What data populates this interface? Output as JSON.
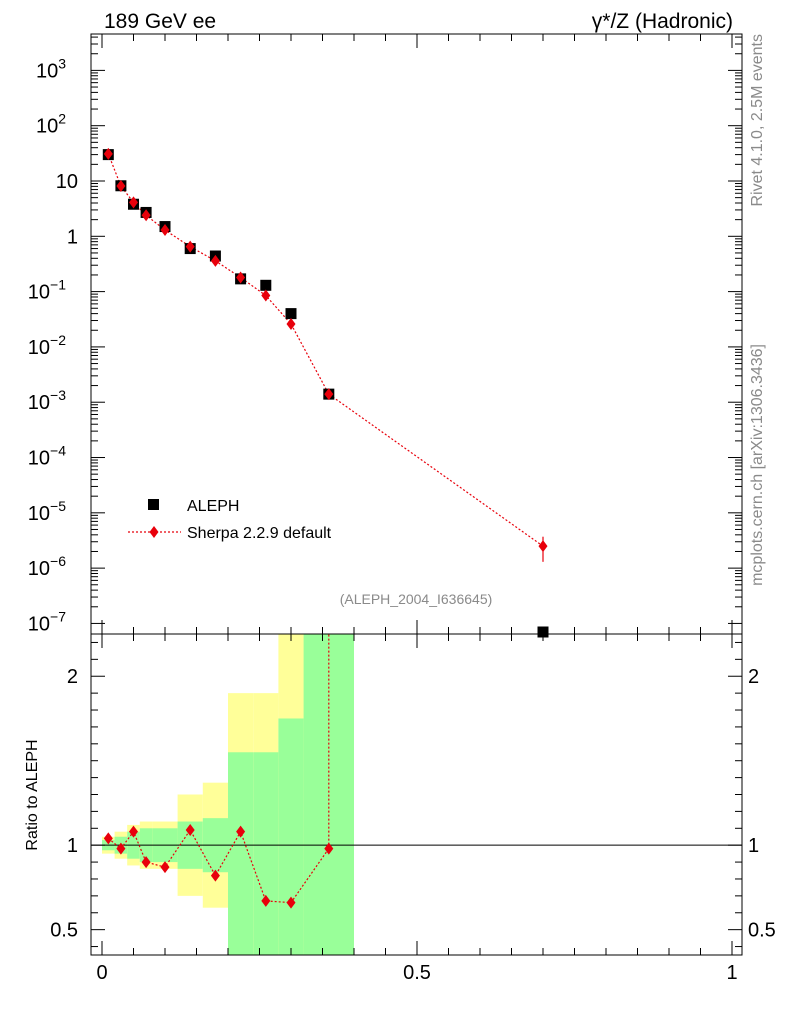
{
  "chart_data": {
    "type": "scatter",
    "title_left": "189 GeV ee",
    "title_right": "γ*/Z (Hadronic)",
    "side_label_top": "Rivet 4.1.0,  2.5M events",
    "side_label_bottom": "mcplots.cern.ch [arXiv:1306.3436]",
    "analysis_tag": "(ALEPH_2004_I636645)",
    "xlim": [
      0,
      1
    ],
    "ylim": [
      1e-07,
      5000
    ],
    "x_ticks": [
      {
        "value": 0,
        "label": "0"
      },
      {
        "value": 0.5,
        "label": "0.5"
      },
      {
        "value": 1,
        "label": "1"
      }
    ],
    "y_ticks": [
      {
        "value": 1000.0,
        "base": "10",
        "exp": "3"
      },
      {
        "value": 100.0,
        "base": "10",
        "exp": "2"
      },
      {
        "value": 10,
        "base": "10",
        "exp": ""
      },
      {
        "value": 1,
        "base": "1",
        "exp": ""
      },
      {
        "value": 0.1,
        "base": "10",
        "exp": "−1"
      },
      {
        "value": 0.01,
        "base": "10",
        "exp": "−2"
      },
      {
        "value": 0.001,
        "base": "10",
        "exp": "−3"
      },
      {
        "value": 0.0001,
        "base": "10",
        "exp": "−4"
      },
      {
        "value": 1e-05,
        "base": "10",
        "exp": "−5"
      },
      {
        "value": 1e-06,
        "base": "10",
        "exp": "−6"
      },
      {
        "value": 1e-07,
        "base": "10",
        "exp": "−7"
      }
    ],
    "legend": [
      {
        "name": "ALEPH",
        "marker": "square",
        "color": "#000000"
      },
      {
        "name": "Sherpa 2.2.9 default",
        "marker": "diamond",
        "color": "#e8000b"
      }
    ],
    "legend_position": "lower-left",
    "series": [
      {
        "name": "ALEPH",
        "x": [
          0.01,
          0.03,
          0.05,
          0.07,
          0.1,
          0.14,
          0.18,
          0.22,
          0.26,
          0.3,
          0.36,
          0.7
        ],
        "y": [
          30,
          8.2,
          3.8,
          2.7,
          1.5,
          0.6,
          0.44,
          0.17,
          0.13,
          0.04,
          0.0014,
          7e-08
        ]
      },
      {
        "name": "Sherpa 2.2.9 default",
        "x": [
          0.01,
          0.03,
          0.05,
          0.07,
          0.1,
          0.14,
          0.18,
          0.22,
          0.26,
          0.3,
          0.36,
          0.7
        ],
        "y": [
          31,
          8.1,
          4.1,
          2.4,
          1.3,
          0.65,
          0.36,
          0.18,
          0.085,
          0.026,
          0.0014,
          2.5e-06
        ],
        "yerr": [
          0,
          0,
          0,
          0,
          0,
          0,
          0,
          0,
          0,
          0,
          0,
          1.2e-06
        ]
      }
    ],
    "ratio": {
      "ylabel": "Ratio to ALEPH",
      "ylim": [
        0.35,
        2.25
      ],
      "y_ticks": [
        {
          "value": 0.5,
          "label": "0.5"
        },
        {
          "value": 1,
          "label": "1"
        },
        {
          "value": 2,
          "label": "2"
        }
      ],
      "bands": [
        {
          "xlo": 0.0,
          "xhi": 0.02,
          "in_lo": 0.97,
          "in_hi": 1.03,
          "out_lo": 0.95,
          "out_hi": 1.05
        },
        {
          "xlo": 0.02,
          "xhi": 0.04,
          "in_lo": 0.95,
          "in_hi": 1.05,
          "out_lo": 0.92,
          "out_hi": 1.08
        },
        {
          "xlo": 0.04,
          "xhi": 0.06,
          "in_lo": 0.92,
          "in_hi": 1.08,
          "out_lo": 0.88,
          "out_hi": 1.12
        },
        {
          "xlo": 0.06,
          "xhi": 0.08,
          "in_lo": 0.9,
          "in_hi": 1.1,
          "out_lo": 0.86,
          "out_hi": 1.14
        },
        {
          "xlo": 0.08,
          "xhi": 0.12,
          "in_lo": 0.9,
          "in_hi": 1.1,
          "out_lo": 0.86,
          "out_hi": 1.14
        },
        {
          "xlo": 0.12,
          "xhi": 0.16,
          "in_lo": 0.86,
          "in_hi": 1.14,
          "out_lo": 0.7,
          "out_hi": 1.3
        },
        {
          "xlo": 0.16,
          "xhi": 0.2,
          "in_lo": 0.84,
          "in_hi": 1.16,
          "out_lo": 0.63,
          "out_hi": 1.37
        },
        {
          "xlo": 0.2,
          "xhi": 0.24,
          "in_lo": 0.35,
          "in_hi": 1.55,
          "out_lo": 0.35,
          "out_hi": 1.9
        },
        {
          "xlo": 0.24,
          "xhi": 0.28,
          "in_lo": 0.35,
          "in_hi": 1.55,
          "out_lo": 0.35,
          "out_hi": 1.9
        },
        {
          "xlo": 0.28,
          "xhi": 0.32,
          "in_lo": 0.35,
          "in_hi": 1.75,
          "out_lo": 0.35,
          "out_hi": 2.25
        },
        {
          "xlo": 0.32,
          "xhi": 0.4,
          "in_lo": 0.35,
          "in_hi": 2.25,
          "out_lo": 0.35,
          "out_hi": 2.25
        }
      ],
      "points": {
        "x": [
          0.01,
          0.03,
          0.05,
          0.07,
          0.1,
          0.14,
          0.18,
          0.22,
          0.26,
          0.3,
          0.36
        ],
        "y": [
          1.04,
          0.98,
          1.08,
          0.9,
          0.87,
          1.09,
          0.82,
          1.08,
          0.67,
          0.66,
          0.98
        ]
      }
    },
    "colors": {
      "inner_band": "#99ff99",
      "outer_band": "#ffff99",
      "mc": "#e8000b",
      "data": "#000000"
    }
  }
}
